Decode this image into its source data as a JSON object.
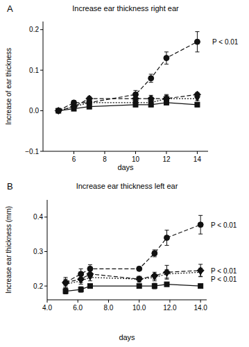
{
  "chart_data": [
    {
      "type": "line",
      "panel_label": "A",
      "title": "Increase ear thickness right ear",
      "x_label": "days",
      "y_label": "Increase of ear thickness",
      "x": [
        5,
        6,
        7,
        10,
        11,
        12,
        14
      ],
      "xlim": [
        4,
        14.7
      ],
      "xticks": [
        6,
        8,
        10,
        12,
        14
      ],
      "ylim": [
        -0.1,
        0.22
      ],
      "yticks": [
        {
          "value": -0.1,
          "label": "−0.1"
        },
        {
          "value": 0,
          "label": "0.0"
        },
        0.1,
        0.2
      ],
      "series": [
        {
          "color": "#111111",
          "marker": "circle",
          "line_style": "dashed",
          "annotation": "P < 0.01",
          "values": [
            0,
            0.02,
            0.02,
            0.04,
            0.08,
            0.13,
            0.17
          ],
          "errors": [
            0,
            0.005,
            0.005,
            0.01,
            0.01,
            0.015,
            0.025
          ]
        },
        {
          "color": "#111111",
          "marker": "diamond",
          "line_style": "dashed",
          "values": [
            0,
            0.01,
            0.03,
            0.03,
            0.03,
            0.03,
            0.04
          ],
          "errors": [
            0,
            0.005,
            0.005,
            0.008,
            0.008,
            0.01,
            0.005
          ]
        },
        {
          "color": "#111111",
          "marker": "triangle",
          "line_style": "dotted",
          "values": [
            0,
            0.01,
            0.02,
            0.02,
            0.02,
            0.03,
            0.03
          ],
          "errors": [
            0,
            0.005,
            0.005,
            0.008,
            0.008,
            0.008,
            0.005
          ]
        },
        {
          "color": "#111111",
          "marker": "square",
          "line_style": "solid",
          "values": [
            0,
            0.005,
            0.01,
            0.015,
            0.015,
            0.02,
            0.015
          ],
          "errors": [
            0,
            0.003,
            0.003,
            0.005,
            0.005,
            0.005,
            0.005
          ]
        }
      ]
    },
    {
      "type": "line",
      "panel_label": "B",
      "title": "Increase ear thickness left ear",
      "x_label": "days",
      "y_label": "Increase ear thickness (mm)",
      "x": [
        5.2,
        6.2,
        6.8,
        10,
        11,
        11.8,
        14
      ],
      "xlim": [
        4,
        14.4
      ],
      "xticks": [
        {
          "value": 4,
          "label": "4.0"
        },
        {
          "value": 6,
          "label": "6.0"
        },
        {
          "value": 8,
          "label": "8.0"
        },
        {
          "value": 10,
          "label": "10.0"
        },
        {
          "value": 12,
          "label": "12.0"
        },
        {
          "value": 14,
          "label": "14.0"
        }
      ],
      "ylim": [
        0.16,
        0.45
      ],
      "yticks": [
        0.2,
        0.3,
        0.4
      ],
      "series": [
        {
          "color": "#111111",
          "marker": "circle",
          "line_style": "dashed",
          "annotation": "P < 0.01",
          "values": [
            0.21,
            0.235,
            0.25,
            0.25,
            0.295,
            0.34,
            0.378
          ],
          "errors": [
            0.015,
            0.015,
            0.012,
            0.005,
            0.01,
            0.022,
            0.027
          ]
        },
        {
          "color": "#111111",
          "marker": "diamond",
          "line_style": "dashed",
          "annotation": "P < 0.01",
          "values": [
            0.21,
            0.22,
            0.235,
            0.22,
            0.23,
            0.24,
            0.245
          ],
          "errors": [
            0.01,
            0.01,
            0.01,
            0.008,
            0.01,
            0.02,
            0.018
          ]
        },
        {
          "color": "#111111",
          "marker": "triangle",
          "line_style": "dotted",
          "annotation": "P < 0.01",
          "values": [
            0.205,
            0.215,
            0.225,
            0.22,
            0.225,
            0.235,
            0.24
          ],
          "errors": [
            0.01,
            0.01,
            0.01,
            0.008,
            0.01,
            0.012,
            0.012
          ]
        },
        {
          "color": "#111111",
          "marker": "square",
          "line_style": "solid",
          "values": [
            0.185,
            0.19,
            0.2,
            0.2,
            0.2,
            0.205,
            0.2
          ],
          "errors": [
            0.008,
            0.008,
            0.005,
            0.005,
            0.008,
            0.005,
            0.003
          ]
        }
      ]
    }
  ]
}
